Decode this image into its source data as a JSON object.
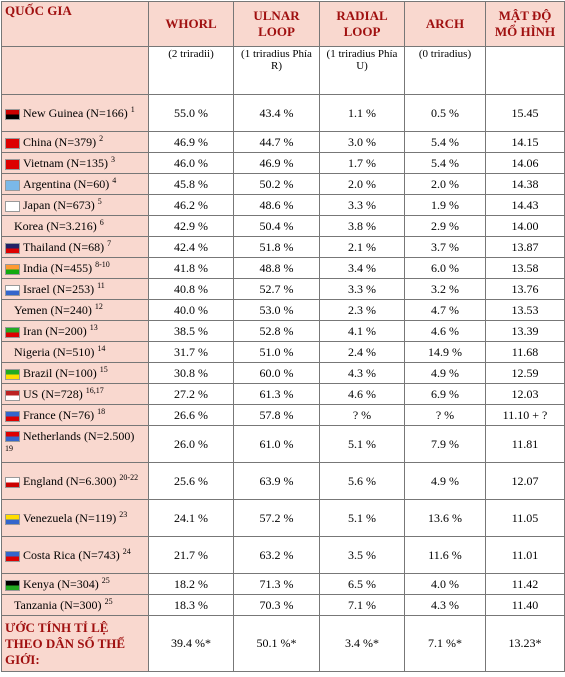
{
  "table": {
    "header": [
      "QUỐC GIA",
      "WHORL",
      "ULNAR LOOP",
      "RADIAL LOOP",
      "ARCH",
      "MẬT ĐỘ MỔ HÌNH"
    ],
    "subheader": [
      "(2 triradii)",
      "(1 triradius Phía R)",
      "(1 triradius Phía U)",
      "(0 triradius)"
    ],
    "rows": [
      {
        "country": "New Guinea (N=166)",
        "note": "1",
        "values": [
          "55.0 %",
          "43.4 %",
          "1.1 %",
          "0.5 %",
          "15.45"
        ]
      },
      {
        "country": "China (N=379)",
        "note": "2",
        "values": [
          "46.9 %",
          "44.7 %",
          "3.0 %",
          "5.4 %",
          "14.15"
        ]
      },
      {
        "country": "Vietnam (N=135)",
        "note": "3",
        "values": [
          "46.0 %",
          "46.9 %",
          "1.7 %",
          "5.4 %",
          "14.06"
        ]
      },
      {
        "country": "Argentina (N=60)",
        "note": "4",
        "values": [
          "45.8 %",
          "50.2 %",
          "2.0 %",
          "2.0 %",
          "14.38"
        ]
      },
      {
        "country": "Japan (N=673)",
        "note": "5",
        "values": [
          "46.2 %",
          "48.6 %",
          "3.3 %",
          "1.9 %",
          "14.43"
        ]
      },
      {
        "country": "Korea (N=3.216)",
        "note": "6",
        "values": [
          "42.9 %",
          "50.4 %",
          "3.8 %",
          "2.9 %",
          "14.00"
        ]
      },
      {
        "country": "Thailand (N=68)",
        "note": "7",
        "values": [
          "42.4 %",
          "51.8 %",
          "2.1 %",
          "3.7 %",
          "13.87"
        ]
      },
      {
        "country": "India (N=455)",
        "note": "8-10",
        "values": [
          "41.8 %",
          "48.8 %",
          "3.4 %",
          "6.0 %",
          "13.58"
        ]
      },
      {
        "country": "Israel (N=253)",
        "note": "11",
        "values": [
          "40.8 %",
          "52.7 %",
          "3.3 %",
          "3.2 %",
          "13.76"
        ]
      },
      {
        "country": "Yemen (N=240)",
        "note": "12",
        "values": [
          "40.0 %",
          "53.0 %",
          "2.3 %",
          "4.7 %",
          "13.53"
        ]
      },
      {
        "country": "Iran (N=200)",
        "note": "13",
        "values": [
          "38.5 %",
          "52.8 %",
          "4.1 %",
          "4.6 %",
          "13.39"
        ]
      },
      {
        "country": "Nigeria (N=510)",
        "note": "14",
        "values": [
          "31.7 %",
          "51.0 %",
          "2.4 %",
          "14.9 %",
          "11.68"
        ]
      },
      {
        "country": "Brazil (N=100)",
        "note": "15",
        "values": [
          "30.8 %",
          "60.0 %",
          "4.3 %",
          "4.9 %",
          "12.59"
        ]
      },
      {
        "country": "US (N=728)",
        "note": "16,17",
        "values": [
          "27.2 %",
          "61.3 %",
          "4.6 %",
          "6.9 %",
          "12.03"
        ]
      },
      {
        "country": "France (N=76)",
        "note": "18",
        "values": [
          "26.6 %",
          "57.8 %",
          "? %",
          "? %",
          "11.10 + ?"
        ]
      },
      {
        "country": "Netherlands (N=2.500)",
        "note": "19",
        "values": [
          "26.0 %",
          "61.0 %",
          "5.1 %",
          "7.9 %",
          "11.81"
        ]
      },
      {
        "country": "England (N=6.300)",
        "note": "20-22",
        "values": [
          "25.6 %",
          "63.9 %",
          "5.6 %",
          "4.9 %",
          "12.07"
        ]
      },
      {
        "country": "Venezuela (N=119)",
        "note": "23",
        "values": [
          "24.1 %",
          "57.2 %",
          "5.1 %",
          "13.6 %",
          "11.05"
        ]
      },
      {
        "country": "Costa Rica (N=743)",
        "note": "24",
        "values": [
          "21.7 %",
          "63.2 %",
          "3.5 %",
          "11.6 %",
          "11.01"
        ]
      },
      {
        "country": "Kenya (N=304)",
        "note": "25",
        "values": [
          "18.2 %",
          "71.3 %",
          "6.5 %",
          "4.0 %",
          "11.42"
        ]
      },
      {
        "country": "Tanzania (N=300)",
        "note": "25",
        "values": [
          "18.3 %",
          "70.3 %",
          "7.1 %",
          "4.3 %",
          "11.40"
        ]
      }
    ],
    "footer": {
      "label": "ƯỚC TÍNH TỈ LỆ THEO DÂN SỐ THẾ GIỚI:",
      "values": [
        "39.4 %*",
        "50.1 %*",
        "3.4 %*",
        "7.1 %*",
        "13.23*"
      ]
    }
  }
}
